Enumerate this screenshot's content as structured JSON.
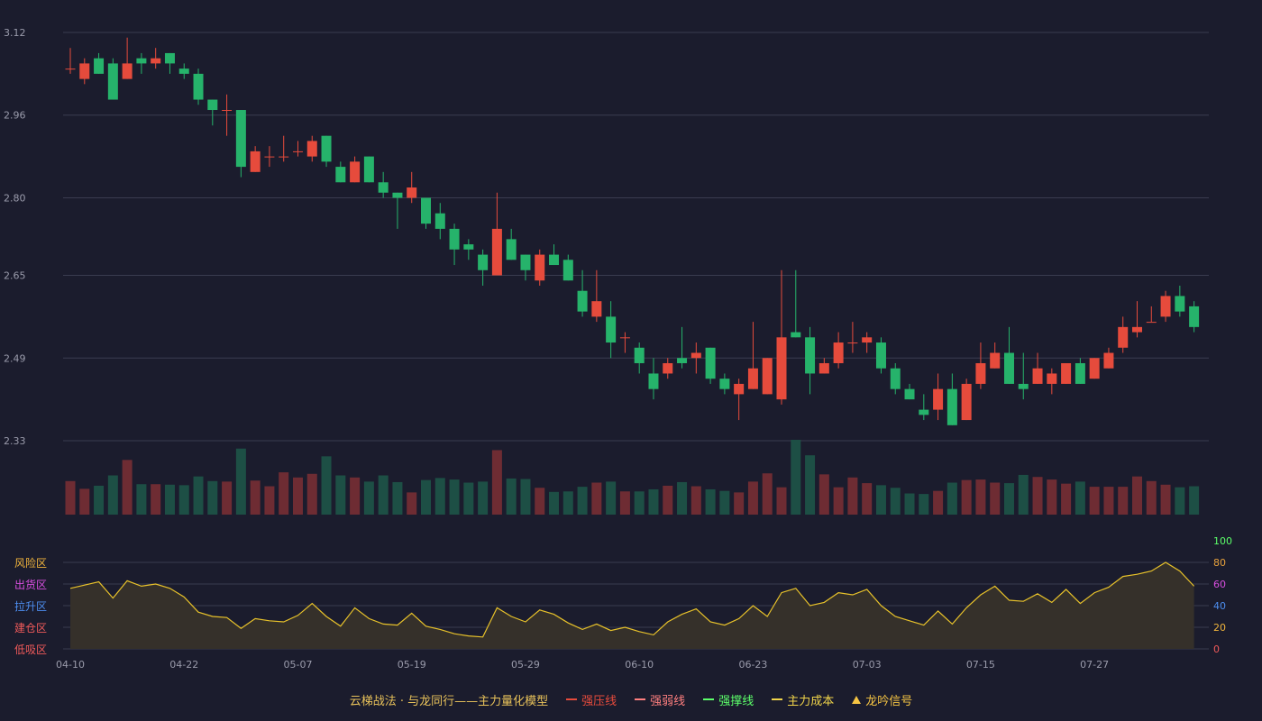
{
  "colors": {
    "background": "#1b1c2d",
    "up": "#e64b3c",
    "down": "#26b36b",
    "up_volume": "#6e2c33",
    "down_volume": "#1d4f45",
    "grid": "#3a3c50",
    "axis_text": "#9a9bab",
    "oscillator_line": "#e8c22a",
    "oscillator_fill": "#35302a"
  },
  "chart_data": [
    {
      "type": "candlestick",
      "ylim": [
        2.33,
        3.12
      ],
      "ytick_labels": [
        "3.12",
        "2.96",
        "2.80",
        "2.65",
        "2.49",
        "2.33"
      ],
      "xtick_labels": [
        "04-10",
        "04-22",
        "05-07",
        "05-19",
        "05-29",
        "06-10",
        "06-23",
        "07-03",
        "07-15",
        "07-27"
      ],
      "xtick_indices": [
        0,
        8,
        16,
        24,
        32,
        40,
        48,
        56,
        64,
        72
      ],
      "candles": [
        [
          3.05,
          3.05,
          3.09,
          3.04
        ],
        [
          3.03,
          3.06,
          3.07,
          3.02
        ],
        [
          3.07,
          3.04,
          3.08,
          3.04
        ],
        [
          3.06,
          2.99,
          3.07,
          2.99
        ],
        [
          3.03,
          3.06,
          3.11,
          3.03
        ],
        [
          3.07,
          3.06,
          3.08,
          3.04
        ],
        [
          3.06,
          3.07,
          3.09,
          3.05
        ],
        [
          3.08,
          3.06,
          3.08,
          3.04
        ],
        [
          3.05,
          3.04,
          3.06,
          3.03
        ],
        [
          3.04,
          2.99,
          3.05,
          2.98
        ],
        [
          2.99,
          2.97,
          2.99,
          2.94
        ],
        [
          2.97,
          2.97,
          3.0,
          2.92
        ],
        [
          2.97,
          2.86,
          2.97,
          2.84
        ],
        [
          2.85,
          2.89,
          2.9,
          2.85
        ],
        [
          2.88,
          2.88,
          2.9,
          2.86
        ],
        [
          2.88,
          2.88,
          2.92,
          2.87
        ],
        [
          2.89,
          2.89,
          2.91,
          2.88
        ],
        [
          2.88,
          2.91,
          2.92,
          2.87
        ],
        [
          2.92,
          2.87,
          2.92,
          2.86
        ],
        [
          2.86,
          2.83,
          2.87,
          2.83
        ],
        [
          2.83,
          2.87,
          2.88,
          2.83
        ],
        [
          2.88,
          2.83,
          2.88,
          2.83
        ],
        [
          2.83,
          2.81,
          2.85,
          2.8
        ],
        [
          2.81,
          2.8,
          2.81,
          2.74
        ],
        [
          2.8,
          2.82,
          2.85,
          2.79
        ],
        [
          2.8,
          2.75,
          2.8,
          2.74
        ],
        [
          2.77,
          2.74,
          2.79,
          2.72
        ],
        [
          2.74,
          2.7,
          2.75,
          2.67
        ],
        [
          2.71,
          2.7,
          2.72,
          2.68
        ],
        [
          2.69,
          2.66,
          2.7,
          2.63
        ],
        [
          2.65,
          2.74,
          2.81,
          2.65
        ],
        [
          2.72,
          2.68,
          2.74,
          2.68
        ],
        [
          2.69,
          2.66,
          2.69,
          2.64
        ],
        [
          2.64,
          2.69,
          2.7,
          2.63
        ],
        [
          2.69,
          2.67,
          2.71,
          2.67
        ],
        [
          2.68,
          2.64,
          2.69,
          2.64
        ],
        [
          2.62,
          2.58,
          2.66,
          2.57
        ],
        [
          2.57,
          2.6,
          2.66,
          2.56
        ],
        [
          2.57,
          2.52,
          2.6,
          2.49
        ],
        [
          2.53,
          2.53,
          2.54,
          2.5
        ],
        [
          2.51,
          2.48,
          2.52,
          2.46
        ],
        [
          2.46,
          2.43,
          2.49,
          2.41
        ],
        [
          2.46,
          2.48,
          2.49,
          2.45
        ],
        [
          2.49,
          2.48,
          2.55,
          2.47
        ],
        [
          2.49,
          2.5,
          2.52,
          2.46
        ],
        [
          2.51,
          2.45,
          2.51,
          2.44
        ],
        [
          2.45,
          2.43,
          2.46,
          2.42
        ],
        [
          2.42,
          2.44,
          2.45,
          2.37
        ],
        [
          2.43,
          2.47,
          2.56,
          2.43
        ],
        [
          2.42,
          2.49,
          2.49,
          2.42
        ],
        [
          2.41,
          2.53,
          2.66,
          2.4
        ],
        [
          2.54,
          2.53,
          2.66,
          2.53
        ],
        [
          2.53,
          2.46,
          2.55,
          2.42
        ],
        [
          2.46,
          2.48,
          2.49,
          2.46
        ],
        [
          2.48,
          2.52,
          2.54,
          2.47
        ],
        [
          2.52,
          2.52,
          2.56,
          2.5
        ],
        [
          2.52,
          2.53,
          2.54,
          2.5
        ],
        [
          2.52,
          2.47,
          2.53,
          2.46
        ],
        [
          2.47,
          2.43,
          2.48,
          2.42
        ],
        [
          2.43,
          2.41,
          2.44,
          2.41
        ],
        [
          2.39,
          2.38,
          2.42,
          2.37
        ],
        [
          2.39,
          2.43,
          2.46,
          2.37
        ],
        [
          2.43,
          2.36,
          2.46,
          2.36
        ],
        [
          2.37,
          2.44,
          2.45,
          2.37
        ],
        [
          2.44,
          2.48,
          2.52,
          2.43
        ],
        [
          2.47,
          2.5,
          2.52,
          2.47
        ],
        [
          2.5,
          2.44,
          2.55,
          2.44
        ],
        [
          2.44,
          2.43,
          2.5,
          2.41
        ],
        [
          2.44,
          2.47,
          2.5,
          2.44
        ],
        [
          2.44,
          2.46,
          2.47,
          2.42
        ],
        [
          2.44,
          2.48,
          2.48,
          2.44
        ],
        [
          2.48,
          2.44,
          2.49,
          2.44
        ],
        [
          2.45,
          2.49,
          2.49,
          2.45
        ],
        [
          2.47,
          2.5,
          2.51,
          2.47
        ],
        [
          2.51,
          2.55,
          2.57,
          2.5
        ],
        [
          2.54,
          2.55,
          2.6,
          2.53
        ],
        [
          2.56,
          2.56,
          2.59,
          2.56
        ],
        [
          2.57,
          2.61,
          2.62,
          2.56
        ],
        [
          2.61,
          2.58,
          2.63,
          2.57
        ],
        [
          2.59,
          2.55,
          2.6,
          2.54
        ]
      ],
      "volume": [
        65,
        50,
        56,
        76,
        106,
        59,
        59,
        58,
        57,
        74,
        65,
        64,
        128,
        66,
        55,
        82,
        72,
        79,
        113,
        76,
        72,
        64,
        76,
        63,
        43,
        67,
        71,
        68,
        62,
        64,
        125,
        70,
        69,
        52,
        44,
        45,
        54,
        62,
        64,
        45,
        45,
        49,
        56,
        63,
        55,
        49,
        46,
        43,
        64,
        80,
        53,
        145,
        115,
        78,
        53,
        72,
        61,
        57,
        52,
        41,
        40,
        46,
        62,
        67,
        68,
        62,
        61,
        77,
        73,
        68,
        60,
        64,
        54,
        54,
        54,
        74,
        65,
        58,
        53,
        55
      ]
    },
    {
      "type": "line",
      "ylim": [
        0,
        100
      ],
      "ytick_labels": [
        "100",
        "80",
        "60",
        "40",
        "20",
        "0"
      ],
      "zone_labels": [
        "风险区",
        "出货区",
        "拉升区",
        "建仓区",
        "低吸区"
      ],
      "values": [
        56,
        59,
        62,
        47,
        63,
        58,
        60,
        56,
        48,
        34,
        30,
        29,
        19,
        28,
        26,
        25,
        31,
        42,
        30,
        21,
        38,
        28,
        23,
        22,
        33,
        21,
        18,
        14,
        12,
        11,
        38,
        30,
        25,
        36,
        32,
        24,
        18,
        23,
        17,
        20,
        16,
        13,
        25,
        32,
        37,
        25,
        22,
        28,
        40,
        30,
        52,
        56,
        40,
        43,
        52,
        50,
        55,
        40,
        30,
        26,
        22,
        35,
        23,
        38,
        50,
        58,
        45,
        44,
        51,
        43,
        55,
        42,
        52,
        57,
        67,
        69,
        72,
        80,
        72,
        58
      ]
    }
  ],
  "legend": {
    "title": "云梯战法 · 与龙同行——主力量化模型",
    "items": [
      {
        "label": "强压线",
        "color": "#e64b3c",
        "style": "line"
      },
      {
        "label": "强弱线",
        "color": "#ff7f7f",
        "style": "dash"
      },
      {
        "label": "强撑线",
        "color": "#5cff6a",
        "style": "line"
      },
      {
        "label": "主力成本",
        "color": "#f0d44a",
        "style": "dash"
      },
      {
        "label": "龙吟信号",
        "color": "#f5c443",
        "style": "triangle"
      }
    ]
  }
}
